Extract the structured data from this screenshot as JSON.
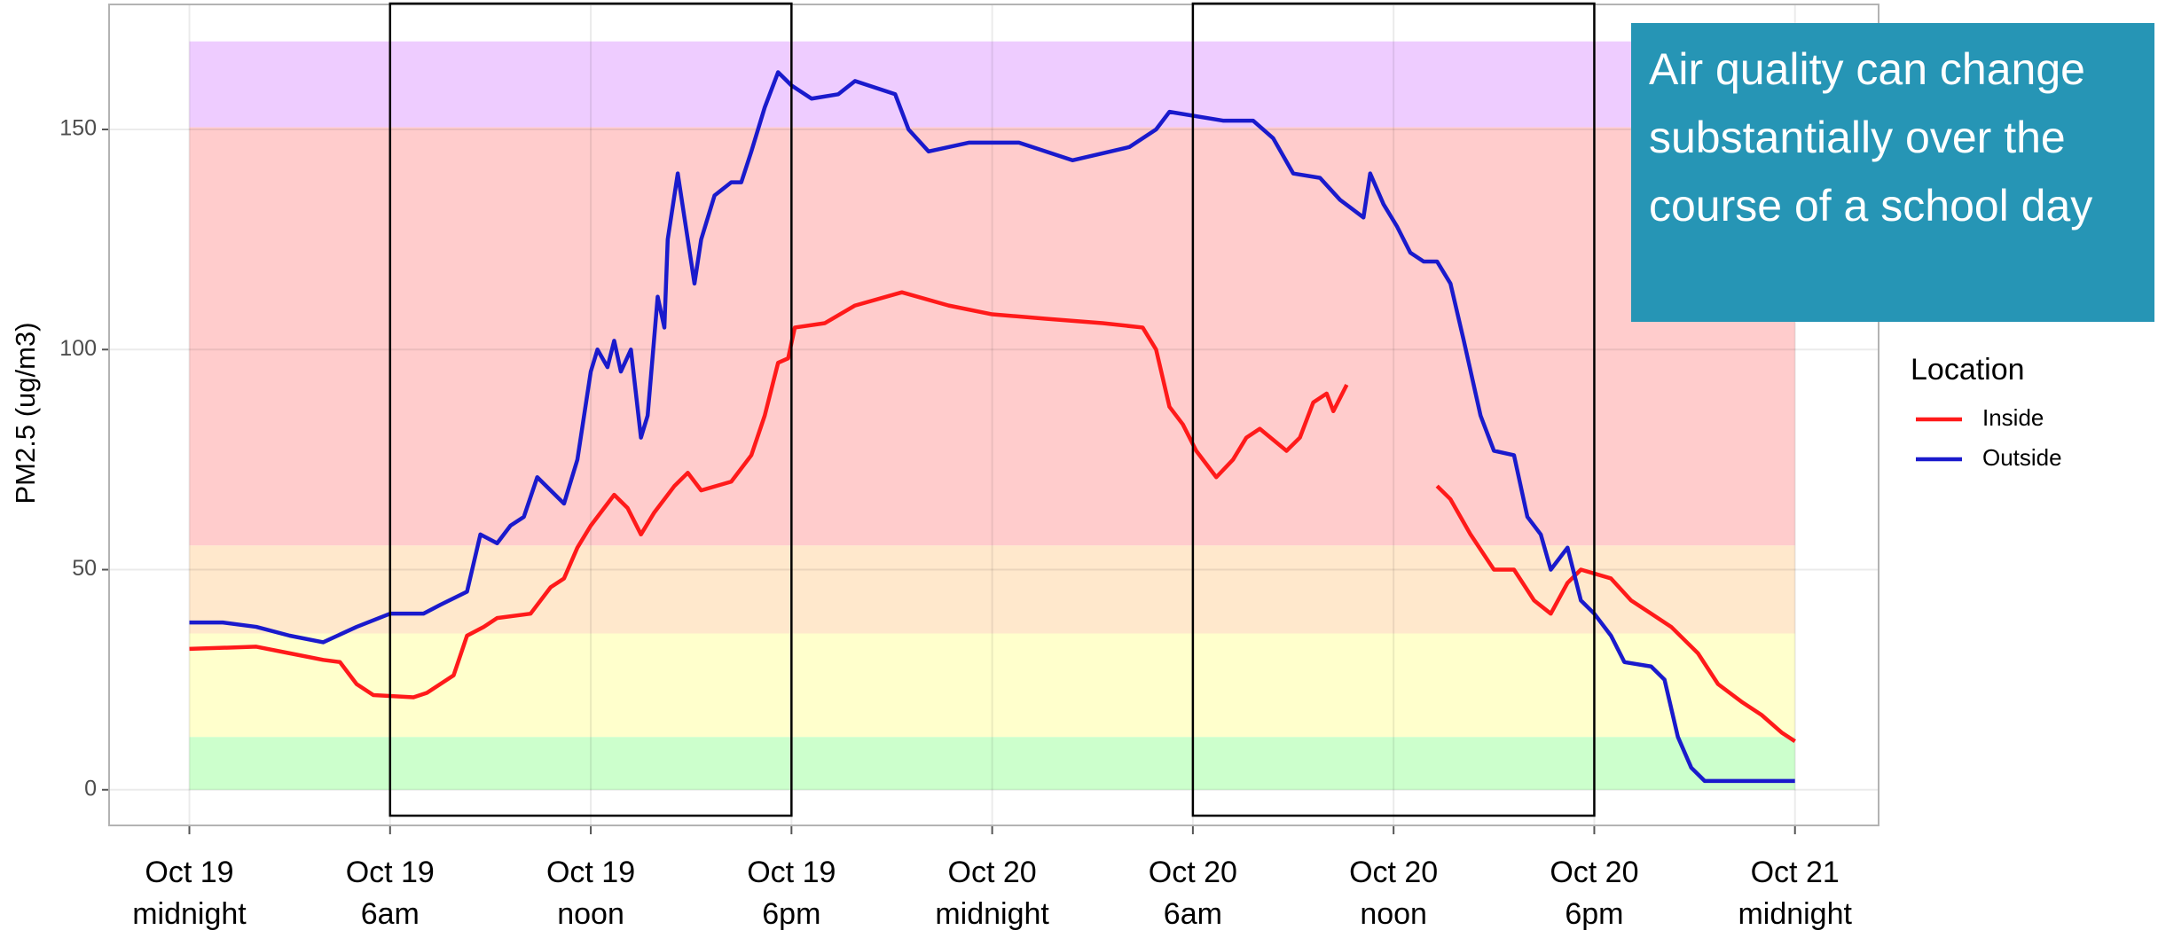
{
  "chart_data": {
    "type": "line",
    "y_label": "PM2.5 (ug/m3)",
    "annotation": "Air quality can change substantially over the course of a school day",
    "legend_title": "Location",
    "legend": "right",
    "grid": true,
    "xlim": [
      -2.4,
      50.5
    ],
    "ylim": [
      -8.1,
      178.4
    ],
    "yticks": [
      0,
      50,
      100,
      150
    ],
    "xticks": [
      {
        "value": 0,
        "label": "Oct 19\nmidnight"
      },
      {
        "value": 6,
        "label": "Oct 19\n6am"
      },
      {
        "value": 12,
        "label": "Oct 19\nnoon"
      },
      {
        "value": 18,
        "label": "Oct 19\n6pm"
      },
      {
        "value": 24,
        "label": "Oct 20\nmidnight"
      },
      {
        "value": 30,
        "label": "Oct 20\n6am"
      },
      {
        "value": 36,
        "label": "Oct 20\nnoon"
      },
      {
        "value": 42,
        "label": "Oct 20\n6pm"
      },
      {
        "value": 48,
        "label": "Oct 21\nmidnight"
      }
    ],
    "bands": [
      {
        "from": 0,
        "to": 12,
        "color": "#ccffcc"
      },
      {
        "from": 12,
        "to": 35.5,
        "color": "#ffffcc"
      },
      {
        "from": 35.5,
        "to": 55.5,
        "color": "#ffe8cc"
      },
      {
        "from": 55.5,
        "to": 150.5,
        "color": "#ffcccc"
      },
      {
        "from": 150.5,
        "to": 170,
        "color": "#eeccff"
      }
    ],
    "highlight_boxes": [
      [
        6,
        18
      ],
      [
        30,
        42
      ]
    ],
    "series": [
      {
        "name": "Inside",
        "color": "#ff1a1a",
        "x": [
          0,
          2,
          3,
          4,
          4.5,
          5,
          5.5,
          6.7,
          7.1,
          7.5,
          7.9,
          8.3,
          8.8,
          9.2,
          10.2,
          10.8,
          11.2,
          11.6,
          12,
          12.7,
          13.1,
          13.5,
          13.9,
          14.5,
          14.9,
          15.3,
          16.2,
          16.8,
          17.2,
          17.6,
          17.9,
          18.1,
          19,
          19.9,
          21.3,
          22.7,
          24,
          25.6,
          27.3,
          28.5,
          28.9,
          29.3,
          29.7,
          30.1,
          30.7,
          31.2,
          31.6,
          32,
          32.8,
          33.2,
          33.6,
          34,
          34.2,
          34.6,
          36,
          37.3,
          37.7,
          38.3,
          39,
          39.6,
          40.2,
          40.7,
          41.2,
          41.6,
          42.5,
          43.1,
          43.7,
          44.3,
          45.1,
          45.7,
          46.4,
          47,
          47.6,
          48
        ],
        "values": [
          32,
          32.5,
          31,
          29.5,
          29,
          24,
          21.5,
          21,
          22,
          24,
          26,
          35,
          37,
          39,
          40,
          46,
          48,
          55,
          60,
          67,
          64,
          58,
          63,
          69,
          72,
          68,
          70,
          76,
          85,
          97,
          98,
          105,
          106,
          110,
          113,
          110,
          108,
          107,
          106,
          105,
          100,
          87,
          83,
          77,
          71,
          75,
          80,
          82,
          77,
          80,
          88,
          90,
          86,
          92,
          null,
          69,
          66,
          58,
          50,
          50,
          43,
          40,
          47,
          50,
          48,
          43,
          40,
          37,
          31,
          24,
          20,
          17,
          13,
          11
        ]
      },
      {
        "name": "Outside",
        "color": "#1a1acc",
        "x": [
          0,
          1,
          2,
          3,
          4,
          5,
          6,
          7,
          7.5,
          8.3,
          8.7,
          9.2,
          9.6,
          10,
          10.4,
          10.8,
          11.2,
          11.6,
          12,
          12.2,
          12.5,
          12.7,
          12.9,
          13.2,
          13.5,
          13.7,
          14,
          14.2,
          14.3,
          14.6,
          14.8,
          15.1,
          15.3,
          15.7,
          16.2,
          16.5,
          16.8,
          17.2,
          17.6,
          18,
          18.6,
          19.4,
          19.9,
          21.1,
          21.5,
          22.1,
          23.3,
          24.8,
          26.4,
          28.1,
          28.9,
          29.3,
          30.9,
          31.8,
          32.4,
          33,
          33.8,
          34.4,
          35.1,
          35.3,
          35.7,
          36.1,
          36.5,
          36.9,
          37.3,
          37.7,
          38.1,
          38.6,
          39,
          39.6,
          40,
          40.4,
          40.7,
          41.2,
          41.6,
          42,
          42.5,
          42.9,
          43.7,
          44.1,
          44.5,
          44.9,
          45.3,
          48
        ],
        "values": [
          38,
          38,
          37,
          35,
          33.5,
          37,
          40,
          40,
          42,
          45,
          58,
          56,
          60,
          62,
          71,
          68,
          65,
          75,
          95,
          100,
          96,
          102,
          95,
          100,
          80,
          85,
          112,
          105,
          125,
          140,
          130,
          115,
          125,
          135,
          138,
          138,
          145,
          155,
          163,
          160,
          157,
          158,
          161,
          158,
          150,
          145,
          147,
          147,
          143,
          146,
          150,
          154,
          152,
          152,
          148,
          140,
          139,
          134,
          130,
          140,
          133,
          128,
          122,
          120,
          120,
          115,
          102,
          85,
          77,
          76,
          62,
          58,
          50,
          55,
          43,
          40,
          35,
          29,
          28,
          25,
          12,
          5,
          2,
          2
        ]
      }
    ]
  }
}
